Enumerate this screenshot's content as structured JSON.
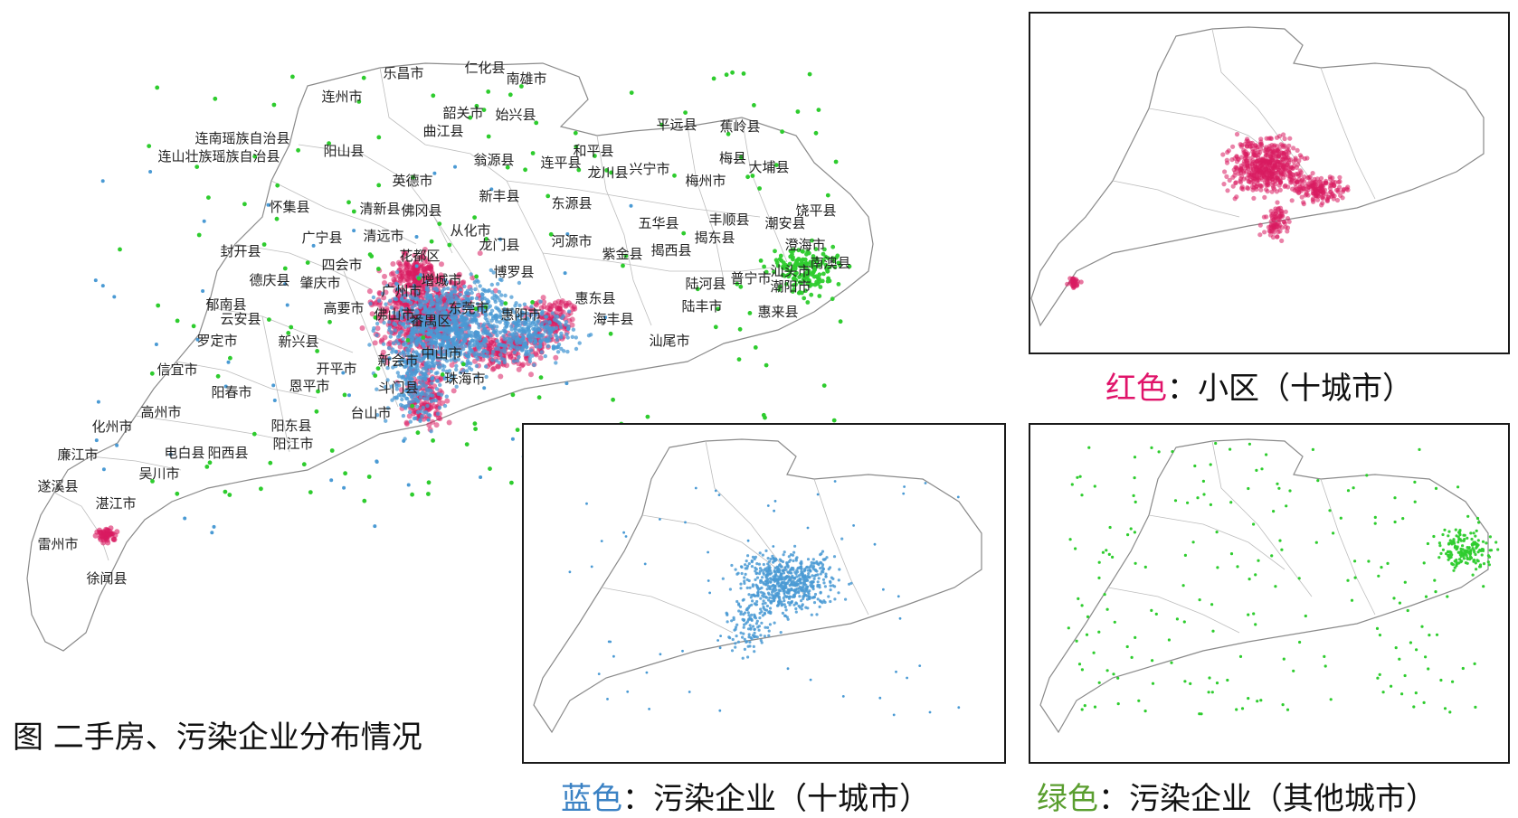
{
  "figure_title": "图 二手房、污染企业分布情况",
  "colors": {
    "red": "#d81b60",
    "blue": "#4a9ad4",
    "green": "#2ecc2e",
    "caption_red": "#e0146a",
    "caption_blue": "#3b82c4",
    "caption_green": "#5a9e2f",
    "outline": "#8a8a8a"
  },
  "legend": {
    "red": {
      "color_word": "红色",
      "text": "：小区（十城市）"
    },
    "blue": {
      "color_word": "蓝色",
      "text": "：污染企业（十城市）"
    },
    "green": {
      "color_word": "绿色",
      "text": "：污染企业（其他城市）"
    }
  },
  "map_labels": [
    "乐昌市",
    "仁化县",
    "南雄市",
    "连州市",
    "韶关市",
    "始兴县",
    "曲江县",
    "连南瑶族自治县",
    "连山壮族瑶族自治县",
    "阳山县",
    "平远县",
    "蕉岭县",
    "和平县",
    "翁源县",
    "连平县",
    "龙川县",
    "兴宁市",
    "梅县",
    "大埔县",
    "英德市",
    "梅州市",
    "新丰县",
    "饶平县",
    "怀集县",
    "清新县",
    "佛冈县",
    "东源县",
    "五华县",
    "丰顺县",
    "潮安县",
    "从化市",
    "广宁县",
    "清远市",
    "龙门县",
    "河源市",
    "揭东县",
    "澄海市",
    "封开县",
    "花都区",
    "紫金县",
    "揭西县",
    "汕头市",
    "南澳县",
    "四会市",
    "增城市",
    "德庆县",
    "肇庆市",
    "博罗县",
    "陆河县",
    "普宁市",
    "潮阳市",
    "郁南县",
    "广州市",
    "惠东县",
    "云安县",
    "高要市",
    "东莞市",
    "惠阳市",
    "佛山市",
    "番禺区",
    "陆丰市",
    "惠来县",
    "海丰县",
    "罗定市",
    "新兴县",
    "中山市",
    "新会市",
    "汕尾市",
    "信宜市",
    "开平市",
    "珠海市",
    "恩平市",
    "斗门县",
    "阳春市",
    "台山市",
    "高州市",
    "阳东县",
    "化州市",
    "电白县",
    "阳西县",
    "阳江市",
    "廉江市",
    "吴川市",
    "遂溪县",
    "湛江市",
    "雷州市",
    "徐闻县"
  ]
}
